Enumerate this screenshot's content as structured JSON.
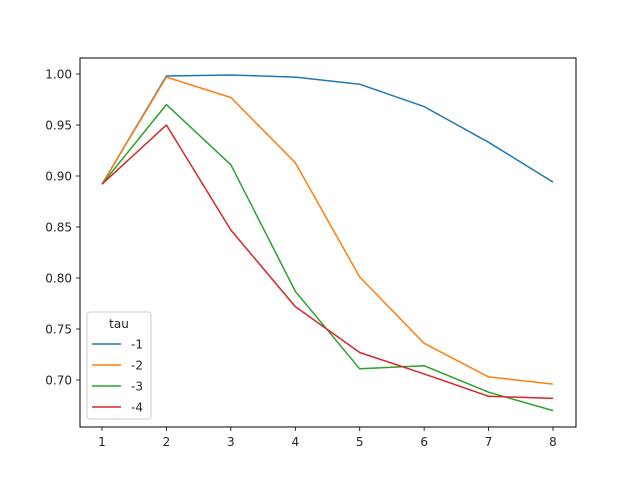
{
  "chart_data": {
    "type": "line",
    "title": "",
    "xlabel": "",
    "ylabel": "",
    "x": [
      1,
      2,
      3,
      4,
      5,
      6,
      7,
      8
    ],
    "xlim": [
      0.65,
      8.35
    ],
    "ylim": [
      0.6535,
      1.0165
    ],
    "xticks": [
      "1",
      "2",
      "3",
      "4",
      "5",
      "6",
      "7",
      "8"
    ],
    "yticks": [
      "0.70",
      "0.75",
      "0.80",
      "0.85",
      "0.90",
      "0.95",
      "1.00"
    ],
    "grid": false,
    "legend": {
      "title": "tau",
      "position": "lower left"
    },
    "series": [
      {
        "name": "-1",
        "color": "#1f77b4",
        "values": [
          0.892,
          0.998,
          0.999,
          0.997,
          0.99,
          0.968,
          0.933,
          0.894
        ]
      },
      {
        "name": "-2",
        "color": "#ff7f0e",
        "values": [
          0.892,
          0.997,
          0.977,
          0.913,
          0.801,
          0.736,
          0.703,
          0.696
        ]
      },
      {
        "name": "-3",
        "color": "#2ca02c",
        "values": [
          0.892,
          0.97,
          0.911,
          0.787,
          0.711,
          0.714,
          0.688,
          0.67
        ]
      },
      {
        "name": "-4",
        "color": "#d62728",
        "values": [
          0.892,
          0.95,
          0.847,
          0.772,
          0.727,
          0.706,
          0.684,
          0.682
        ]
      }
    ]
  }
}
